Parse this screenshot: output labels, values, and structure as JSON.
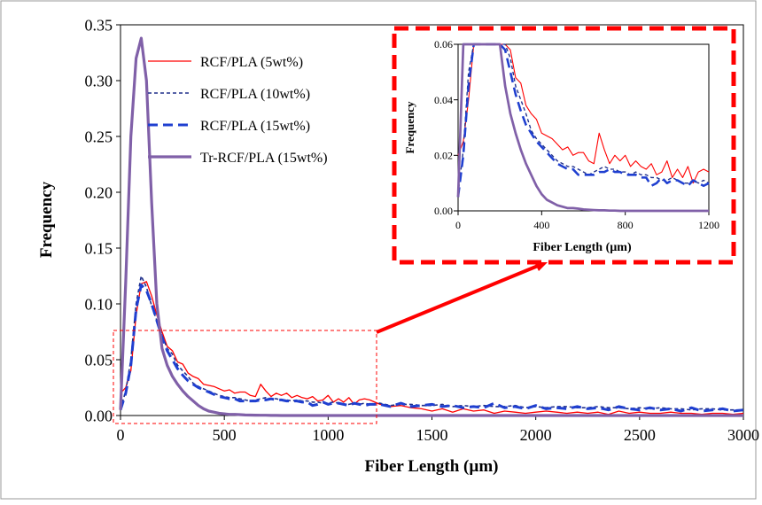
{
  "chart_data": [
    {
      "type": "line",
      "xlabel": "Fiber Length (µm)",
      "ylabel": "Frequency",
      "xlim": [
        0,
        3000
      ],
      "ylim": [
        0,
        0.35
      ],
      "xticks": [
        "0",
        "500",
        "1000",
        "1500",
        "2000",
        "2500",
        "3000"
      ],
      "yticks": [
        "0.00",
        "0.05",
        "0.10",
        "0.15",
        "0.20",
        "0.25",
        "0.30",
        "0.35"
      ],
      "grid": false,
      "legend_position": "top-left",
      "x": [
        0,
        25,
        50,
        75,
        100,
        125,
        150,
        175,
        200,
        225,
        250,
        275,
        300,
        325,
        350,
        375,
        400,
        425,
        450,
        475,
        500,
        525,
        550,
        575,
        600,
        625,
        650,
        675,
        700,
        725,
        750,
        775,
        800,
        825,
        850,
        875,
        900,
        925,
        950,
        975,
        1000,
        1025,
        1050,
        1075,
        1100,
        1125,
        1150,
        1175,
        1200,
        1250,
        1300,
        1350,
        1400,
        1450,
        1500,
        1550,
        1600,
        1650,
        1700,
        1750,
        1800,
        1850,
        1900,
        1950,
        2000,
        2050,
        2100,
        2150,
        2200,
        2250,
        2300,
        2350,
        2400,
        2450,
        2500,
        2550,
        2600,
        2650,
        2700,
        2750,
        2800,
        2850,
        2900,
        2950,
        3000
      ],
      "series": [
        {
          "name": "RCF/PLA (5wt%)",
          "color": "#ff0000",
          "style": "solid",
          "values": [
            0.02,
            0.025,
            0.04,
            0.09,
            0.118,
            0.12,
            0.107,
            0.09,
            0.075,
            0.062,
            0.058,
            0.048,
            0.046,
            0.038,
            0.035,
            0.033,
            0.028,
            0.027,
            0.026,
            0.024,
            0.022,
            0.023,
            0.02,
            0.021,
            0.021,
            0.018,
            0.017,
            0.028,
            0.022,
            0.017,
            0.02,
            0.018,
            0.02,
            0.016,
            0.018,
            0.016,
            0.015,
            0.017,
            0.013,
            0.014,
            0.018,
            0.012,
            0.015,
            0.012,
            0.016,
            0.01,
            0.014,
            0.015,
            0.014,
            0.01,
            0.008,
            0.009,
            0.007,
            0.006,
            0.004,
            0.006,
            0.003,
            0.006,
            0.004,
            0.005,
            0.002,
            0.004,
            0.003,
            0.002,
            0.003,
            0.004,
            0.003,
            0.002,
            0.003,
            0.002,
            0.003,
            0.001,
            0.004,
            0.002,
            0.003,
            0.002,
            0.002,
            0.003,
            0.002,
            0.002,
            0.001,
            0.002,
            0.002,
            0.001,
            0.002
          ]
        },
        {
          "name": "RCF/PLA (10wt%)",
          "color": "#1f2f8a",
          "style": "short-dash",
          "values": [
            0.006,
            0.022,
            0.05,
            0.1,
            0.125,
            0.115,
            0.098,
            0.085,
            0.072,
            0.06,
            0.055,
            0.045,
            0.04,
            0.035,
            0.029,
            0.026,
            0.024,
            0.022,
            0.02,
            0.018,
            0.017,
            0.016,
            0.016,
            0.015,
            0.014,
            0.013,
            0.014,
            0.015,
            0.016,
            0.015,
            0.015,
            0.014,
            0.014,
            0.013,
            0.014,
            0.013,
            0.013,
            0.012,
            0.012,
            0.011,
            0.011,
            0.012,
            0.011,
            0.01,
            0.01,
            0.011,
            0.01,
            0.011,
            0.01,
            0.011,
            0.009,
            0.01,
            0.01,
            0.009,
            0.009,
            0.01,
            0.008,
            0.009,
            0.008,
            0.009,
            0.008,
            0.008,
            0.009,
            0.007,
            0.008,
            0.007,
            0.008,
            0.008,
            0.007,
            0.007,
            0.008,
            0.007,
            0.007,
            0.006,
            0.007,
            0.006,
            0.007,
            0.006,
            0.006,
            0.005,
            0.006,
            0.006,
            0.005,
            0.005,
            0.005
          ]
        },
        {
          "name": "RCF/PLA (15wt%)",
          "color": "#1f3fd0",
          "style": "long-dash",
          "values": [
            0.005,
            0.02,
            0.045,
            0.095,
            0.117,
            0.112,
            0.1,
            0.085,
            0.07,
            0.058,
            0.05,
            0.042,
            0.036,
            0.031,
            0.028,
            0.025,
            0.023,
            0.021,
            0.019,
            0.017,
            0.016,
            0.015,
            0.015,
            0.013,
            0.013,
            0.013,
            0.013,
            0.014,
            0.014,
            0.015,
            0.014,
            0.014,
            0.013,
            0.013,
            0.013,
            0.012,
            0.012,
            0.009,
            0.01,
            0.012,
            0.01,
            0.011,
            0.011,
            0.01,
            0.009,
            0.011,
            0.01,
            0.009,
            0.01,
            0.01,
            0.008,
            0.011,
            0.008,
            0.009,
            0.01,
            0.008,
            0.009,
            0.007,
            0.008,
            0.007,
            0.011,
            0.007,
            0.008,
            0.006,
            0.009,
            0.006,
            0.007,
            0.006,
            0.008,
            0.006,
            0.007,
            0.005,
            0.008,
            0.006,
            0.005,
            0.007,
            0.005,
            0.006,
            0.004,
            0.007,
            0.004,
            0.005,
            0.006,
            0.004,
            0.005
          ]
        },
        {
          "name": "Tr-RCF/PLA (15wt%)",
          "color": "#8060a8",
          "style": "solid-thick",
          "values": [
            0.005,
            0.12,
            0.25,
            0.32,
            0.338,
            0.3,
            0.19,
            0.1,
            0.06,
            0.045,
            0.035,
            0.028,
            0.022,
            0.017,
            0.013,
            0.009,
            0.006,
            0.004,
            0.003,
            0.002,
            0.0015,
            0.001,
            0.001,
            0.0008,
            0.0005,
            0.0004,
            0.0003,
            0.0002,
            0.0002,
            0.0001,
            0.0001,
            0,
            0,
            0,
            0,
            0,
            0,
            0,
            0,
            0,
            0,
            0,
            0,
            0,
            0,
            0,
            0,
            0,
            0,
            0,
            0,
            0,
            0,
            0,
            0,
            0,
            0,
            0,
            0,
            0,
            0,
            0,
            0,
            0,
            0,
            0,
            0,
            0,
            0,
            0,
            0,
            0,
            0,
            0,
            0,
            0,
            0,
            0,
            0,
            0,
            0,
            0,
            0,
            0,
            0
          ]
        }
      ]
    },
    {
      "type": "line",
      "xlabel": "Fiber Length (µm)",
      "ylabel": "Frequency",
      "xlim": [
        0,
        1200
      ],
      "ylim": [
        0,
        0.06
      ],
      "xticks": [
        "0",
        "400",
        "800",
        "1200"
      ],
      "yticks": [
        "0.00",
        "0.02",
        "0.04",
        "0.06"
      ],
      "grid": false
    }
  ]
}
